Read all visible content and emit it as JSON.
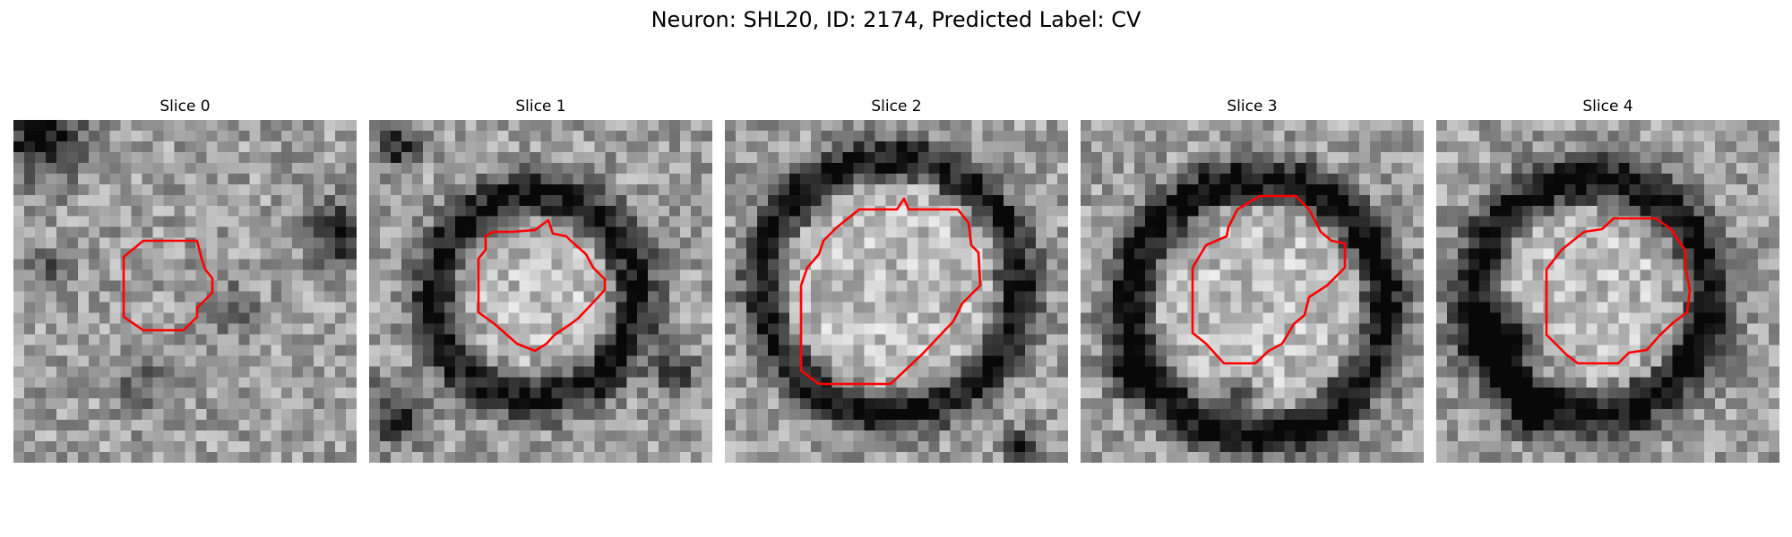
{
  "figure": {
    "title": "Neuron: SHL20, ID: 2174, Predicted Label: CV"
  },
  "panels": [
    {
      "title": "Slice 0"
    },
    {
      "title": "Slice 1"
    },
    {
      "title": "Slice 2"
    },
    {
      "title": "Slice 3"
    },
    {
      "title": "Slice 4"
    }
  ],
  "colors": {
    "contour": "#ff0000",
    "background": "#ffffff"
  }
}
